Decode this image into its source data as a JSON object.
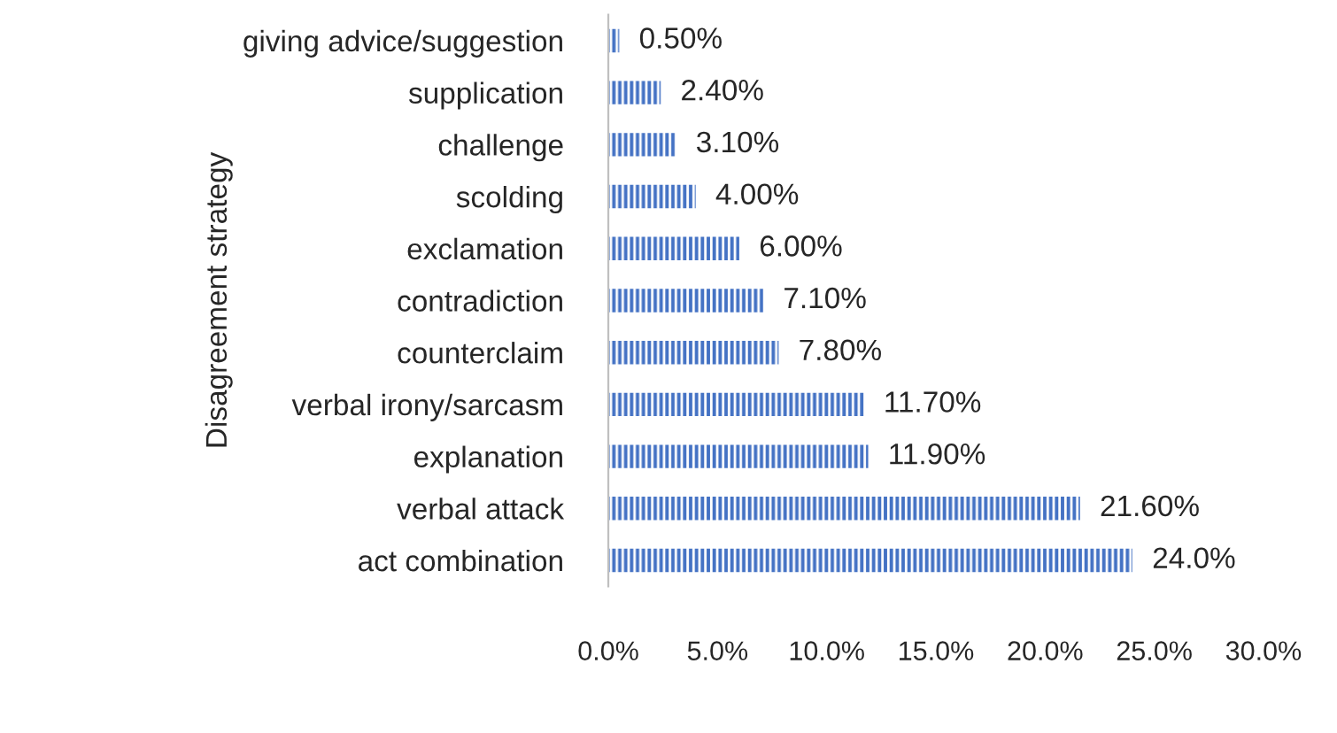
{
  "chart_data": {
    "type": "bar",
    "orientation": "horizontal",
    "ylabel": "Disagreement strategy",
    "categories": [
      "giving advice/suggestion",
      "supplication",
      "challenge",
      "scolding",
      "exclamation",
      "contradiction",
      "counterclaim",
      "verbal irony/sarcasm",
      "explanation",
      "verbal attack",
      "act combination"
    ],
    "values": [
      0.5,
      2.4,
      3.1,
      4.0,
      6.0,
      7.1,
      7.8,
      11.7,
      11.9,
      21.6,
      24.0
    ],
    "value_labels": [
      "0.50%",
      "2.40%",
      "3.10%",
      "4.00%",
      "6.00%",
      "7.10%",
      "7.80%",
      "11.70%",
      "11.90%",
      "21.60%",
      "24.0%"
    ],
    "color": "#4472c4",
    "xlim": [
      0,
      30
    ],
    "xticks": [
      {
        "value": 0,
        "label": "0.0%"
      },
      {
        "value": 5,
        "label": "5.0%"
      },
      {
        "value": 10,
        "label": "10.0%"
      },
      {
        "value": 15,
        "label": "15.0%"
      },
      {
        "value": 20,
        "label": "20.0%"
      },
      {
        "value": 25,
        "label": "25.0%"
      },
      {
        "value": 30,
        "label": "30.0%"
      }
    ],
    "grid": false,
    "legend": false
  }
}
